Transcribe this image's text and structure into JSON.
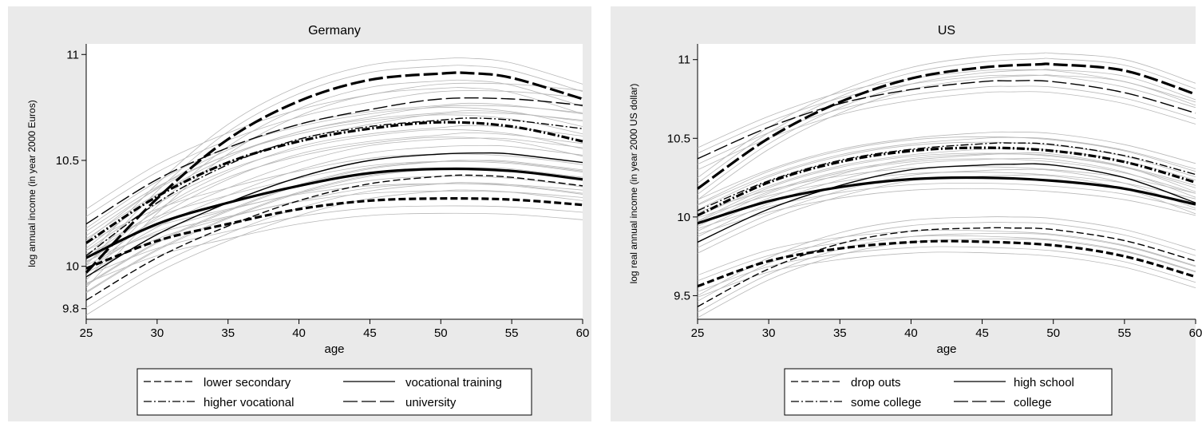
{
  "chart_data": [
    {
      "type": "line",
      "title": "Germany",
      "xlabel": "age",
      "ylabel": "log annual income (in year 2000 Euros)",
      "xlim": [
        25,
        60
      ],
      "ylim": [
        9.75,
        11.05
      ],
      "xticks": [
        25,
        30,
        35,
        40,
        45,
        50,
        55,
        60
      ],
      "yticks": [
        9.8,
        10,
        10.5,
        11
      ],
      "ytick_labels": [
        "9.8",
        "10",
        "10.5",
        "11"
      ],
      "legend": [
        "lower secondary",
        "vocational training",
        "higher vocational",
        "university"
      ],
      "legend_position": "bottom",
      "series": [
        {
          "name": "lower secondary",
          "style": "dash",
          "weight": "thin",
          "x": [
            25,
            30,
            35,
            40,
            45,
            50,
            52,
            55,
            60
          ],
          "y": [
            9.84,
            10.04,
            10.19,
            10.31,
            10.39,
            10.425,
            10.43,
            10.42,
            10.38
          ]
        },
        {
          "name": "lower secondary",
          "style": "dash",
          "weight": "thick",
          "x": [
            25,
            30,
            35,
            40,
            45,
            50,
            55,
            60
          ],
          "y": [
            9.99,
            10.12,
            10.2,
            10.27,
            10.31,
            10.32,
            10.315,
            10.29
          ]
        },
        {
          "name": "vocational training",
          "style": "solid",
          "weight": "thin",
          "x": [
            25,
            30,
            35,
            40,
            45,
            50,
            53,
            55,
            60
          ],
          "y": [
            9.95,
            10.15,
            10.3,
            10.42,
            10.5,
            10.53,
            10.535,
            10.53,
            10.49
          ]
        },
        {
          "name": "vocational training",
          "style": "solid",
          "weight": "thick",
          "x": [
            25,
            30,
            35,
            40,
            45,
            50,
            55,
            60
          ],
          "y": [
            10.04,
            10.2,
            10.3,
            10.38,
            10.44,
            10.46,
            10.45,
            10.41
          ]
        },
        {
          "name": "higher vocational",
          "style": "dashdot",
          "weight": "thin",
          "x": [
            25,
            30,
            35,
            40,
            45,
            50,
            52,
            55,
            60
          ],
          "y": [
            10.05,
            10.3,
            10.48,
            10.6,
            10.66,
            10.69,
            10.7,
            10.69,
            10.65
          ]
        },
        {
          "name": "higher vocational",
          "style": "dashdot",
          "weight": "thick",
          "x": [
            25,
            30,
            35,
            40,
            45,
            50,
            55,
            60
          ],
          "y": [
            10.11,
            10.33,
            10.49,
            10.59,
            10.65,
            10.68,
            10.66,
            10.59
          ]
        },
        {
          "name": "university",
          "style": "longdash",
          "weight": "thin",
          "x": [
            25,
            30,
            35,
            40,
            45,
            50,
            55,
            60
          ],
          "y": [
            10.2,
            10.41,
            10.56,
            10.67,
            10.74,
            10.79,
            10.79,
            10.76
          ]
        },
        {
          "name": "university",
          "style": "longdash",
          "weight": "thick",
          "x": [
            25,
            30,
            35,
            40,
            45,
            50,
            52,
            55,
            60
          ],
          "y": [
            9.97,
            10.32,
            10.6,
            10.78,
            10.88,
            10.91,
            10.912,
            10.89,
            10.79
          ]
        }
      ]
    },
    {
      "type": "line",
      "title": "US",
      "xlabel": "age",
      "ylabel": "log real annual income (in year 2000 US dollar)",
      "xlim": [
        25,
        60
      ],
      "ylim": [
        9.35,
        11.1
      ],
      "xticks": [
        25,
        30,
        35,
        40,
        45,
        50,
        55,
        60
      ],
      "yticks": [
        9.5,
        10,
        10.5,
        11
      ],
      "ytick_labels": [
        "9.5",
        "10",
        "10.5",
        "11"
      ],
      "legend": [
        "drop outs",
        "high school",
        "some college",
        "college"
      ],
      "legend_position": "bottom",
      "series": [
        {
          "name": "drop outs",
          "style": "dash",
          "weight": "thin",
          "x": [
            25,
            30,
            35,
            40,
            45,
            47,
            50,
            55,
            60
          ],
          "y": [
            9.43,
            9.67,
            9.83,
            9.91,
            9.93,
            9.93,
            9.92,
            9.85,
            9.72
          ]
        },
        {
          "name": "drop outs",
          "style": "dash",
          "weight": "thick",
          "x": [
            25,
            30,
            35,
            40,
            44,
            50,
            55,
            60
          ],
          "y": [
            9.56,
            9.72,
            9.8,
            9.84,
            9.845,
            9.82,
            9.75,
            9.62
          ]
        },
        {
          "name": "high school",
          "style": "solid",
          "weight": "thin",
          "x": [
            25,
            30,
            35,
            40,
            45,
            47,
            50,
            55,
            60
          ],
          "y": [
            9.84,
            10.05,
            10.2,
            10.3,
            10.33,
            10.335,
            10.33,
            10.25,
            10.09
          ]
        },
        {
          "name": "high school",
          "style": "solid",
          "weight": "thick",
          "x": [
            25,
            30,
            35,
            40,
            45,
            50,
            55,
            60
          ],
          "y": [
            9.96,
            10.1,
            10.19,
            10.24,
            10.25,
            10.23,
            10.18,
            10.08
          ]
        },
        {
          "name": "some college",
          "style": "dashdot",
          "weight": "thin",
          "x": [
            25,
            30,
            35,
            40,
            45,
            47,
            50,
            55,
            60
          ],
          "y": [
            10.04,
            10.23,
            10.36,
            10.43,
            10.465,
            10.47,
            10.46,
            10.39,
            10.27
          ]
        },
        {
          "name": "some college",
          "style": "dashdot",
          "weight": "thick",
          "x": [
            25,
            30,
            35,
            40,
            45,
            50,
            55,
            60
          ],
          "y": [
            10.01,
            10.22,
            10.35,
            10.42,
            10.44,
            10.42,
            10.35,
            10.22
          ]
        },
        {
          "name": "college",
          "style": "longdash",
          "weight": "thin",
          "x": [
            25,
            30,
            35,
            40,
            45,
            47,
            50,
            55,
            60
          ],
          "y": [
            10.37,
            10.57,
            10.72,
            10.81,
            10.86,
            10.865,
            10.86,
            10.79,
            10.66
          ]
        },
        {
          "name": "college",
          "style": "longdash",
          "weight": "thick",
          "x": [
            25,
            30,
            35,
            40,
            45,
            49,
            50,
            55,
            60
          ],
          "y": [
            10.18,
            10.5,
            10.73,
            10.88,
            10.95,
            10.97,
            10.97,
            10.93,
            10.78
          ]
        }
      ]
    }
  ]
}
